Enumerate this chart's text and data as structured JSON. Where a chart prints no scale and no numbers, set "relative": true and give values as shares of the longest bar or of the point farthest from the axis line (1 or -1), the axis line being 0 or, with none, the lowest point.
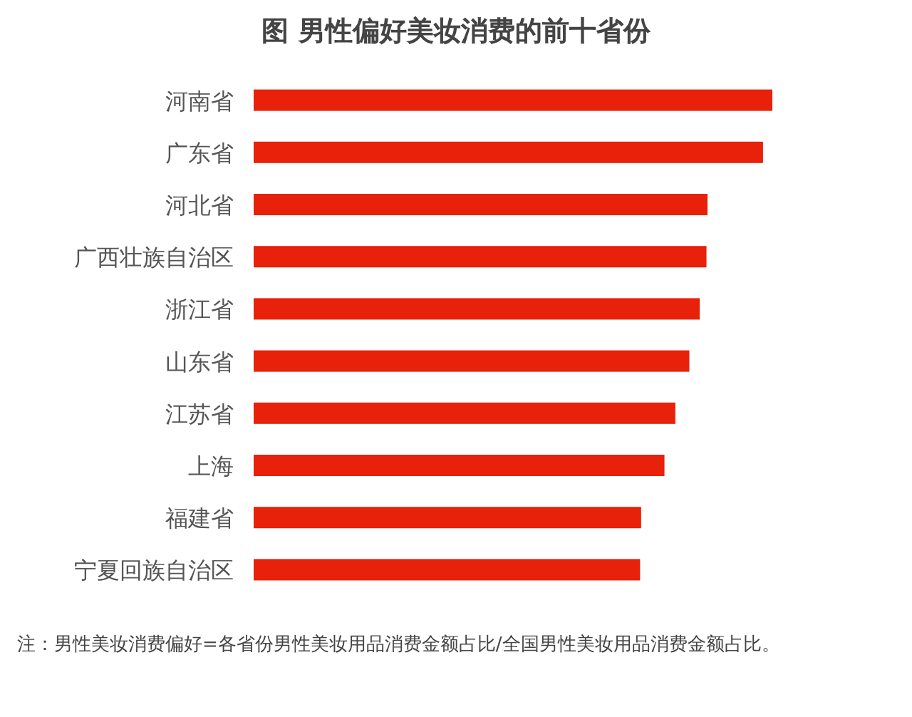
{
  "chart_data": {
    "type": "bar",
    "orientation": "horizontal",
    "relative": true,
    "title": "图 男性偏好美妆消费的前十省份",
    "categories": [
      "河南省",
      "广东省",
      "河北省",
      "广西壮族自治区",
      "浙江省",
      "山东省",
      "江苏省",
      "上海",
      "福建省",
      "宁夏回族自治区"
    ],
    "values": [
      1,
      0.982,
      0.875,
      0.873,
      0.86,
      0.84,
      0.813,
      0.792,
      0.747,
      0.745
    ],
    "color": "#e8210b",
    "annotations": [
      "注：男性美妆消费偏好=各省份男性美妆用品消费金额占比/全国男性美妆用品消费金额占比。"
    ]
  }
}
